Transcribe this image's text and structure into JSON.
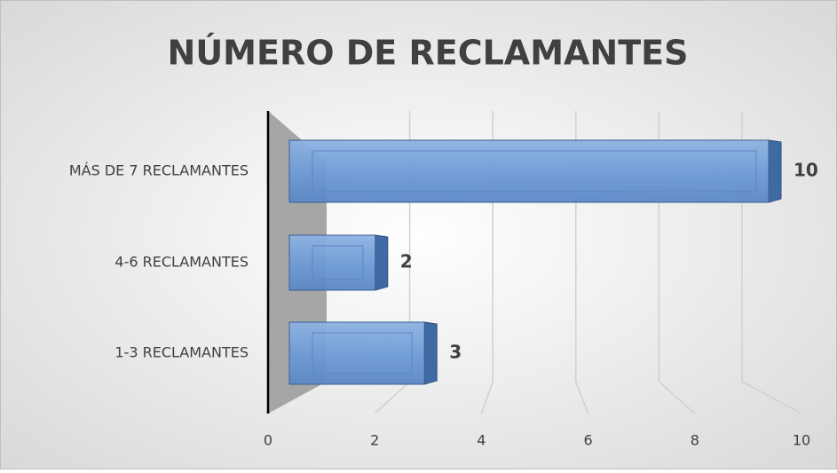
{
  "chart_data": {
    "type": "bar",
    "orientation": "horizontal",
    "title": "NÚMERO DE RECLAMANTES",
    "categories": [
      "1-3 RECLAMANTES",
      "4-6 RECLAMANTES",
      "MÁS DE 7 RECLAMANTES"
    ],
    "values": [
      3,
      2,
      10
    ],
    "color": "#4f81bd",
    "xlim": [
      0,
      10
    ],
    "xticks": [
      0,
      2,
      4,
      6,
      8,
      10
    ],
    "grid": true
  }
}
